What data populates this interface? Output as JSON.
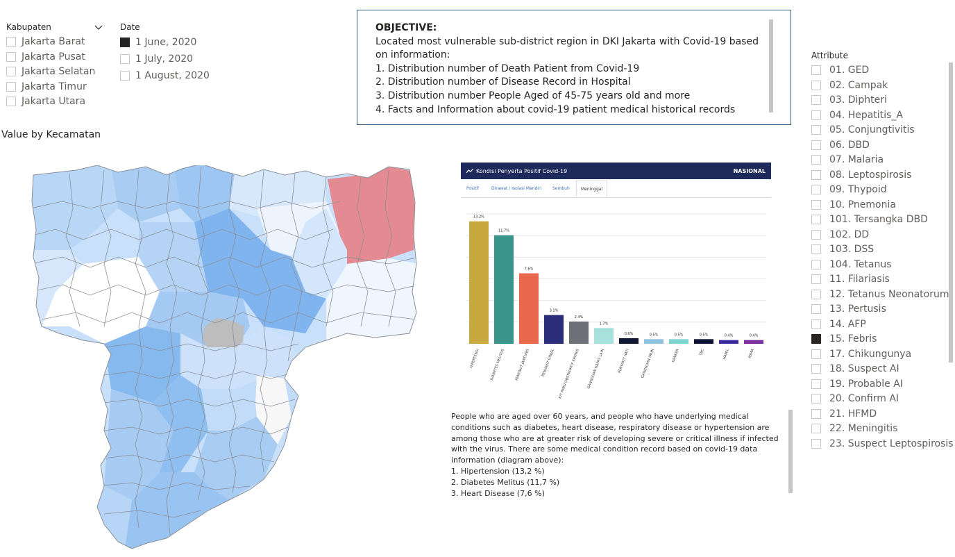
{
  "kabupaten_slicer": {
    "title": "Kabupaten",
    "items": [
      {
        "label": "Jakarta Barat",
        "checked": false
      },
      {
        "label": "Jakarta Pusat",
        "checked": false
      },
      {
        "label": "Jakarta Selatan",
        "checked": false
      },
      {
        "label": "Jakarta Timur",
        "checked": false
      },
      {
        "label": "Jakarta Utara",
        "checked": false
      }
    ]
  },
  "date_slicer": {
    "title": "Date",
    "items": [
      {
        "label": "1 June, 2020",
        "checked": true
      },
      {
        "label": "1 July, 2020",
        "checked": false
      },
      {
        "label": "1 August, 2020",
        "checked": false
      }
    ]
  },
  "objective": {
    "heading": "OBJECTIVE:",
    "lines": [
      "Located most vulnerable sub-district region in DKI Jakarta with Covid-19 based on information:",
      "1. Distribution number of Death Patient from Covid-19",
      "2. Distribution number of Disease Record in Hospital",
      "3. Distribution number People Aged of 45-75 years old and more",
      "4. Facts and Information about covid-19 patient medical historical records"
    ]
  },
  "map": {
    "title": "Value by Kecamatan"
  },
  "attribute_slicer": {
    "title": "Attribute",
    "items": [
      {
        "label": "01. GED",
        "checked": false
      },
      {
        "label": "02. Campak",
        "checked": false
      },
      {
        "label": "03. Diphteri",
        "checked": false
      },
      {
        "label": "04. Hepatitis_A",
        "checked": false
      },
      {
        "label": "05. Conjungtivitis",
        "checked": false
      },
      {
        "label": "06. DBD",
        "checked": false
      },
      {
        "label": "07. Malaria",
        "checked": false
      },
      {
        "label": "08. Leptospirosis",
        "checked": false
      },
      {
        "label": "09. Thypoid",
        "checked": false
      },
      {
        "label": "10. Pnemonia",
        "checked": false
      },
      {
        "label": "101. Tersangka DBD",
        "checked": false
      },
      {
        "label": "102. DD",
        "checked": false
      },
      {
        "label": "103. DSS",
        "checked": false
      },
      {
        "label": "104. Tetanus",
        "checked": false
      },
      {
        "label": "11. Filariasis",
        "checked": false
      },
      {
        "label": "12. Tetanus Neonatorum",
        "checked": false
      },
      {
        "label": "13. Pertusis",
        "checked": false
      },
      {
        "label": "14. AFP",
        "checked": false
      },
      {
        "label": "15. Febris",
        "checked": true
      },
      {
        "label": "17. Chikungunya",
        "checked": false
      },
      {
        "label": "18. Suspect AI",
        "checked": false
      },
      {
        "label": "19. Probable AI",
        "checked": false
      },
      {
        "label": "20. Confirm AI",
        "checked": false
      },
      {
        "label": "21. HFMD",
        "checked": false
      },
      {
        "label": "22. Meningitis",
        "checked": false
      },
      {
        "label": "23. Suspect Leptospirosis",
        "checked": false
      }
    ]
  },
  "embedded_chart": {
    "header_title": "Kondisi Penyerta Positif Covid-19",
    "header_right": "NASIONAL",
    "tabs": [
      "Positif",
      "Dirawat / Isolasi Mandiri",
      "Sembuh",
      "Meninggal"
    ],
    "active_tab": "Meninggal"
  },
  "chart_data": {
    "type": "bar",
    "categories": [
      "HIPERTENSI",
      "DIABETES MELITUS",
      "PENYAKIT JANTUNG",
      "PENYAKIT GINJAL",
      "PENYAKIT PARU OBSTRUKTIF KRONIS",
      "GANGGUAN NAPAS LAIN",
      "PENYAKIT HATI",
      "GANGGUAN IMUN",
      "KANKER",
      "TBC",
      "HAMIL",
      "ASMA"
    ],
    "values": [
      13.2,
      11.7,
      7.6,
      3.1,
      2.4,
      1.7,
      0.6,
      0.5,
      0.5,
      0.5,
      0.4,
      0.4
    ],
    "value_labels": [
      "13.2%",
      "11.7%",
      "7.6%",
      "3.1%",
      "2.4%",
      "1.7%",
      "0.6%",
      "0.5%",
      "0.5%",
      "0.5%",
      "0.4%",
      "0.4%"
    ],
    "colors": [
      "#c8a93f",
      "#3a9489",
      "#e8674d",
      "#2c2d79",
      "#6e7078",
      "#a8e0db",
      "#111634",
      "#8ec4de",
      "#7fd3cf",
      "#0f1335",
      "#3a2a9e",
      "#7a2fa3"
    ],
    "ylim": [
      0,
      14
    ]
  },
  "description": {
    "paragraph": "People who are aged over 60 years, and people who have underlying medical conditions such as diabetes, heart disease, respiratory disease or hypertension are among those who are at greater risk of developing severe or critical illness if infected with the virus. There are some medical condition record based on covid-19 data information (diagram above):",
    "list": [
      "1. Hipertension (13,2 %)",
      "2. Diabetes Melitus (11,7 %)",
      "3. Heart Disease (7,6 %)"
    ]
  },
  "colors": {
    "highlight_red": "#e48a93",
    "grey_region": "#bdbdbd",
    "box_border": "#2f5d7c"
  }
}
